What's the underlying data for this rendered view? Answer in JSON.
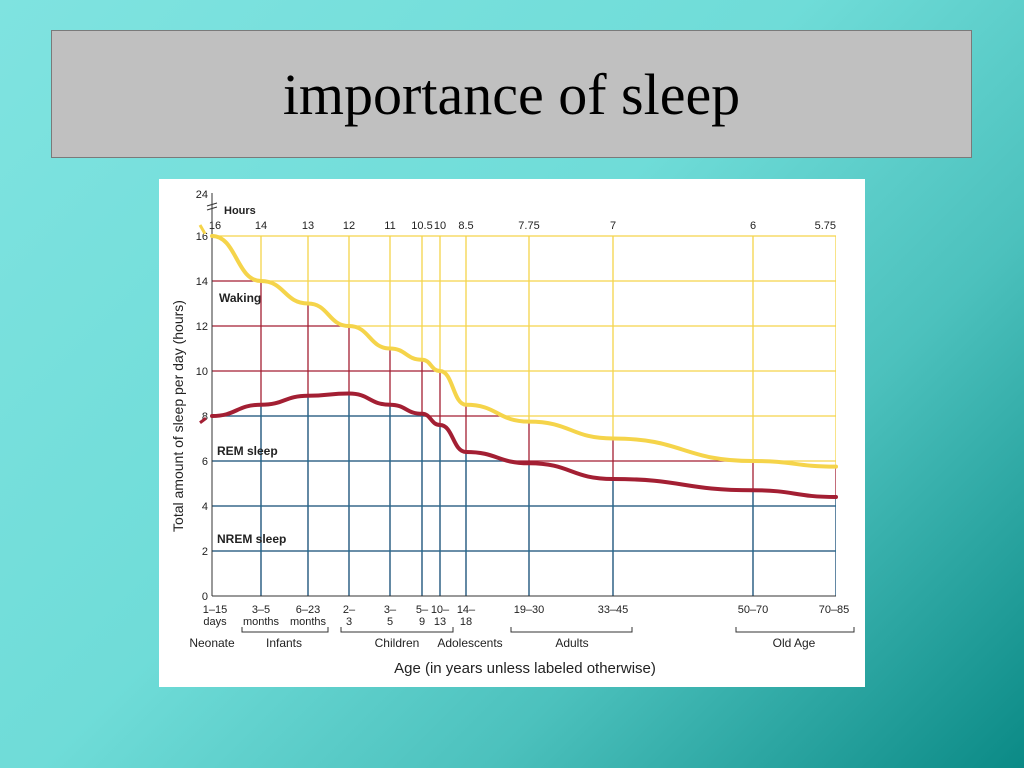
{
  "slide": {
    "title": "importance of sleep"
  },
  "colors": {
    "waking": "#f5d44a",
    "rem": "#a31f33",
    "nrem": "#1f6e94",
    "background_start": "#7fe3e0",
    "background_end": "#0b8a86",
    "title_box": "#c0c0c0"
  },
  "chart_data": {
    "type": "line",
    "title": "",
    "xlabel": "Age (in years unless labeled otherwise)",
    "ylabel": "Total amount of sleep per day (hours)",
    "y_unit_label": "Hours",
    "ylim": [
      0,
      16
    ],
    "y_break_label": "24",
    "y_ticks": [
      0,
      2,
      4,
      6,
      8,
      10,
      12,
      14,
      16
    ],
    "categories": [
      {
        "label": "1–15\ndays",
        "total_sleep": "16"
      },
      {
        "label": "3–5\nmonths",
        "total_sleep": "14"
      },
      {
        "label": "6–23\nmonths",
        "total_sleep": "13"
      },
      {
        "label": "2–\n3",
        "total_sleep": "12"
      },
      {
        "label": "3–\n5",
        "total_sleep": "11"
      },
      {
        "label": "5–\n9",
        "total_sleep": "10.5"
      },
      {
        "label": "10–\n13",
        "total_sleep": "10"
      },
      {
        "label": "14–\n18",
        "total_sleep": "8.5"
      },
      {
        "label": "19–30",
        "total_sleep": "7.75"
      },
      {
        "label": "33–45",
        "total_sleep": "7"
      },
      {
        "label": "50–70",
        "total_sleep": "6"
      },
      {
        "label": "70–85",
        "total_sleep": "5.75"
      }
    ],
    "series": [
      {
        "name": "Waking",
        "values": [
          16,
          14,
          13,
          12,
          11,
          10.5,
          10,
          8.5,
          7.75,
          7,
          6,
          5.75
        ]
      },
      {
        "name": "REM sleep",
        "values": [
          8,
          8.5,
          8.9,
          9,
          8.5,
          8.1,
          7.6,
          6.4,
          5.9,
          5.2,
          4.7,
          4.4
        ]
      }
    ],
    "region_labels": [
      "Waking",
      "REM sleep",
      "NREM sleep"
    ],
    "age_groups": [
      {
        "label": "Neonate"
      },
      {
        "label": "Infants"
      },
      {
        "label": "Children"
      },
      {
        "label": "Adolescents"
      },
      {
        "label": "Adults"
      },
      {
        "label": "Old Age"
      }
    ]
  }
}
